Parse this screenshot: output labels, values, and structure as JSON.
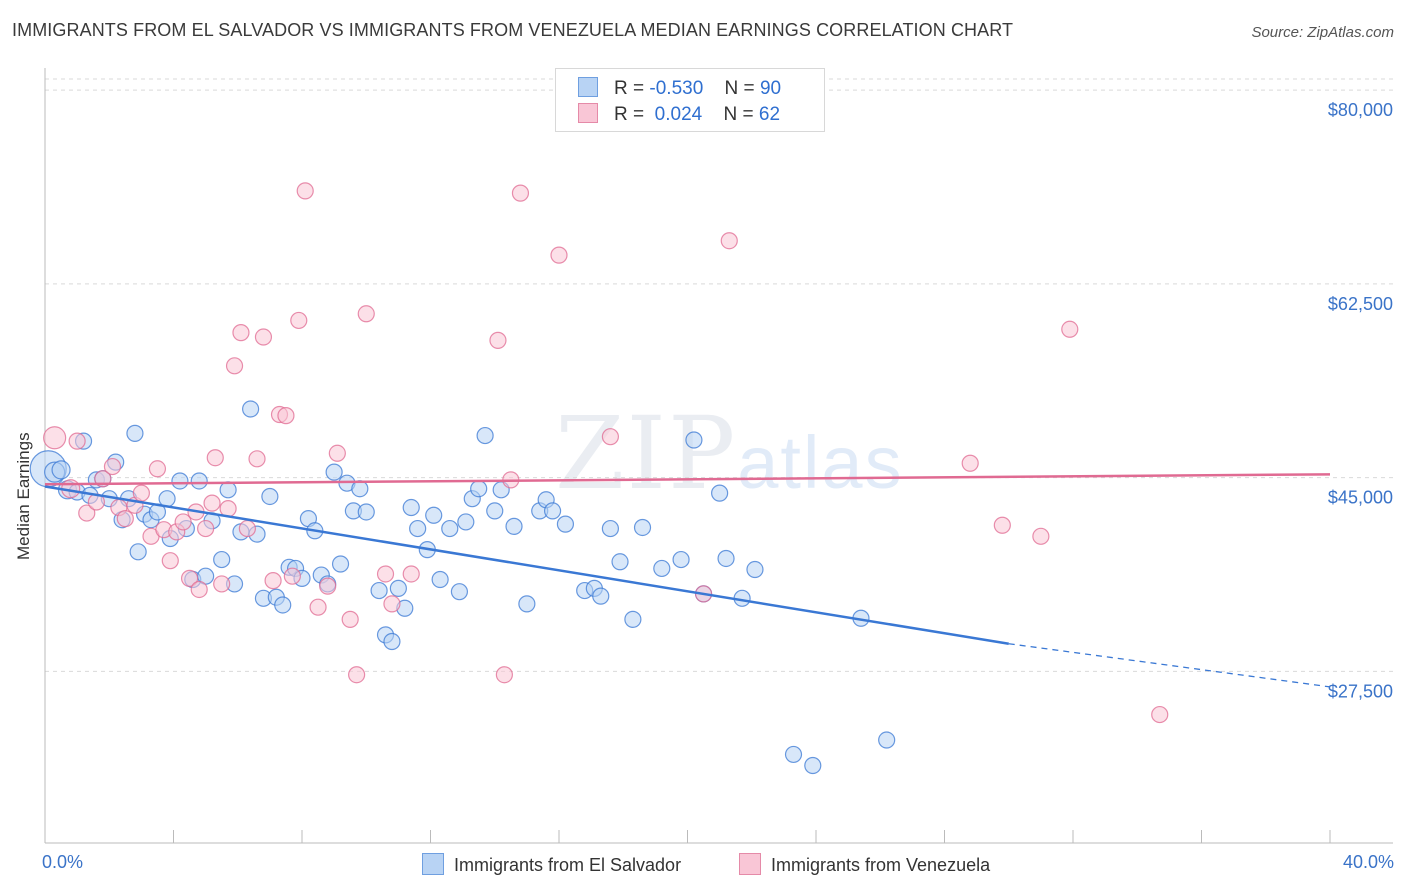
{
  "chart_data": {
    "type": "scatter",
    "title": "IMMIGRANTS FROM EL SALVADOR VS IMMIGRANTS FROM VENEZUELA MEDIAN EARNINGS CORRELATION CHART",
    "source": "Source: ZipAtlas.com",
    "xlabel": "",
    "ylabel": "Median Earnings",
    "xlim": [
      0,
      40
    ],
    "ylim": [
      12000,
      82000
    ],
    "x_tick_labels": [
      "0.0%",
      "40.0%"
    ],
    "y_ticks": [
      {
        "value": 80000,
        "label": "$80,000"
      },
      {
        "value": 62500,
        "label": "$62,500"
      },
      {
        "value": 45000,
        "label": "$45,000"
      },
      {
        "value": 27500,
        "label": "$27,500"
      }
    ],
    "colors": {
      "series_blue": "#3a78d4",
      "series_blue_fill": "#b8d3f4",
      "series_pink": "#e06a92",
      "series_pink_fill": "#f9c6d6",
      "axis_label": "#3a73c8",
      "grid": "#d9d9d9"
    },
    "legend": {
      "rows": [
        {
          "r_label": "R =",
          "r_value": "-0.530",
          "n_label": "N =",
          "n_value": "90"
        },
        {
          "r_label": "R =",
          "r_value": " 0.024",
          "n_label": "N =",
          "n_value": "62"
        }
      ]
    },
    "watermark": {
      "zip": "ZIP",
      "atlas": "atlas"
    },
    "series": [
      {
        "name": "Immigrants from El Salvador",
        "trend": {
          "x0": 0,
          "y0": 44200,
          "x1": 30,
          "y1": 30000,
          "dash_x1": 40,
          "dash_y1": 26100
        },
        "points": [
          [
            0.1,
            45800,
            18
          ],
          [
            0.3,
            45500,
            10
          ],
          [
            0.5,
            45700,
            9
          ],
          [
            0.7,
            43900,
            9
          ],
          [
            1.0,
            43700,
            8
          ],
          [
            1.2,
            48300,
            8
          ],
          [
            1.4,
            43400,
            8
          ],
          [
            1.6,
            44800,
            8
          ],
          [
            1.8,
            44900,
            8
          ],
          [
            2.0,
            43100,
            8
          ],
          [
            2.2,
            46400,
            8
          ],
          [
            2.4,
            41200,
            8
          ],
          [
            2.6,
            43100,
            8
          ],
          [
            2.8,
            49000,
            8
          ],
          [
            2.9,
            38300,
            8
          ],
          [
            3.1,
            41700,
            8
          ],
          [
            3.3,
            41200,
            8
          ],
          [
            3.5,
            41900,
            8
          ],
          [
            3.8,
            43100,
            8
          ],
          [
            3.9,
            39500,
            8
          ],
          [
            4.2,
            44700,
            8
          ],
          [
            4.4,
            40400,
            8
          ],
          [
            4.6,
            35800,
            8
          ],
          [
            4.8,
            44700,
            8
          ],
          [
            5.0,
            36100,
            8
          ],
          [
            5.2,
            41100,
            8
          ],
          [
            5.5,
            37600,
            8
          ],
          [
            5.7,
            43900,
            8
          ],
          [
            5.9,
            35400,
            8
          ],
          [
            6.1,
            40100,
            8
          ],
          [
            6.4,
            51200,
            8
          ],
          [
            6.6,
            39900,
            8
          ],
          [
            6.8,
            34100,
            8
          ],
          [
            7.0,
            43300,
            8
          ],
          [
            7.2,
            34200,
            8
          ],
          [
            7.4,
            33500,
            8
          ],
          [
            7.6,
            36900,
            8
          ],
          [
            7.8,
            36800,
            8
          ],
          [
            8.0,
            35900,
            8
          ],
          [
            8.2,
            41300,
            8
          ],
          [
            8.4,
            40200,
            8
          ],
          [
            8.6,
            36200,
            8
          ],
          [
            8.8,
            35400,
            8
          ],
          [
            9.0,
            45500,
            8
          ],
          [
            9.2,
            37200,
            8
          ],
          [
            9.4,
            44500,
            8
          ],
          [
            9.6,
            42000,
            8
          ],
          [
            9.8,
            44000,
            8
          ],
          [
            10.0,
            41900,
            8
          ],
          [
            10.4,
            34800,
            8
          ],
          [
            10.6,
            30800,
            8
          ],
          [
            10.8,
            30200,
            8
          ],
          [
            11.0,
            35000,
            8
          ],
          [
            11.2,
            33200,
            8
          ],
          [
            11.4,
            42300,
            8
          ],
          [
            11.6,
            40400,
            8
          ],
          [
            11.9,
            38500,
            8
          ],
          [
            12.1,
            41600,
            8
          ],
          [
            12.3,
            35800,
            8
          ],
          [
            12.6,
            40400,
            8
          ],
          [
            12.9,
            34700,
            8
          ],
          [
            13.1,
            41000,
            8
          ],
          [
            13.3,
            43100,
            8
          ],
          [
            13.5,
            44000,
            8
          ],
          [
            13.7,
            48800,
            8
          ],
          [
            14.0,
            42000,
            8
          ],
          [
            14.2,
            43900,
            8
          ],
          [
            14.6,
            40600,
            8
          ],
          [
            15.0,
            33600,
            8
          ],
          [
            15.4,
            42000,
            8
          ],
          [
            15.6,
            43000,
            8
          ],
          [
            15.8,
            42000,
            8
          ],
          [
            16.2,
            40800,
            8
          ],
          [
            16.8,
            34800,
            8
          ],
          [
            17.1,
            35000,
            8
          ],
          [
            17.3,
            34300,
            8
          ],
          [
            17.6,
            40400,
            8
          ],
          [
            17.9,
            37400,
            8
          ],
          [
            18.3,
            32200,
            8
          ],
          [
            18.6,
            40500,
            8
          ],
          [
            19.2,
            36800,
            8
          ],
          [
            19.8,
            37600,
            8
          ],
          [
            20.2,
            48400,
            8
          ],
          [
            20.5,
            34500,
            8
          ],
          [
            21.0,
            43600,
            8
          ],
          [
            21.2,
            37700,
            8
          ],
          [
            21.7,
            34100,
            8
          ],
          [
            22.1,
            36700,
            8
          ],
          [
            23.3,
            20000,
            8
          ],
          [
            23.9,
            19000,
            8
          ],
          [
            25.4,
            32300,
            8
          ],
          [
            26.2,
            21300,
            8
          ]
        ]
      },
      {
        "name": "Immigrants from Venezuela",
        "trend": {
          "x0": 0,
          "y0": 44400,
          "x1": 40,
          "y1": 45300
        },
        "points": [
          [
            0.3,
            48600,
            11
          ],
          [
            0.8,
            44000,
            9
          ],
          [
            1.0,
            48300,
            8
          ],
          [
            1.3,
            41800,
            8
          ],
          [
            1.6,
            42800,
            8
          ],
          [
            1.8,
            44900,
            8
          ],
          [
            2.1,
            46000,
            8
          ],
          [
            2.3,
            42300,
            8
          ],
          [
            2.5,
            41300,
            8
          ],
          [
            2.8,
            42500,
            8
          ],
          [
            3.0,
            43600,
            8
          ],
          [
            3.3,
            39700,
            8
          ],
          [
            3.5,
            45800,
            8
          ],
          [
            3.7,
            40300,
            8
          ],
          [
            3.9,
            37500,
            8
          ],
          [
            4.1,
            40100,
            8
          ],
          [
            4.3,
            41000,
            8
          ],
          [
            4.5,
            35900,
            8
          ],
          [
            4.7,
            41900,
            8
          ],
          [
            4.8,
            34900,
            8
          ],
          [
            5.0,
            40400,
            8
          ],
          [
            5.2,
            42700,
            8
          ],
          [
            5.3,
            46800,
            8
          ],
          [
            5.5,
            35400,
            8
          ],
          [
            5.7,
            42200,
            8
          ],
          [
            5.9,
            55100,
            8
          ],
          [
            6.1,
            58100,
            8
          ],
          [
            6.3,
            40400,
            8
          ],
          [
            6.6,
            46700,
            8
          ],
          [
            6.8,
            57700,
            8
          ],
          [
            7.1,
            35700,
            8
          ],
          [
            7.3,
            50700,
            8
          ],
          [
            7.5,
            50600,
            8
          ],
          [
            7.7,
            36100,
            8
          ],
          [
            7.9,
            59200,
            8
          ],
          [
            8.1,
            70900,
            8
          ],
          [
            8.5,
            33300,
            8
          ],
          [
            8.8,
            35200,
            8
          ],
          [
            9.1,
            47200,
            8
          ],
          [
            9.5,
            32200,
            8
          ],
          [
            9.7,
            27200,
            8
          ],
          [
            10.0,
            59800,
            8
          ],
          [
            10.6,
            36300,
            8
          ],
          [
            10.8,
            33600,
            8
          ],
          [
            11.4,
            36300,
            8
          ],
          [
            14.1,
            57400,
            8
          ],
          [
            14.3,
            27200,
            8
          ],
          [
            14.5,
            44800,
            8
          ],
          [
            14.8,
            70700,
            8
          ],
          [
            16.0,
            65100,
            8
          ],
          [
            17.6,
            48700,
            8
          ],
          [
            20.5,
            34500,
            8
          ],
          [
            21.3,
            66400,
            8
          ],
          [
            28.8,
            46300,
            8
          ],
          [
            29.8,
            40700,
            8
          ],
          [
            31.0,
            39700,
            8
          ],
          [
            31.9,
            58400,
            8
          ],
          [
            34.7,
            23600,
            8
          ]
        ]
      }
    ]
  }
}
